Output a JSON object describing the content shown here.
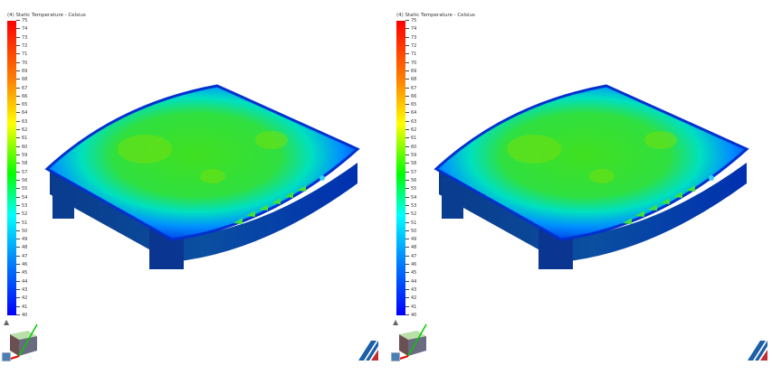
{
  "panels": [
    {
      "legend_title": "(4) Static Temperature - Celsius"
    },
    {
      "legend_title": "(4) Static Temperature - Celsius"
    }
  ],
  "legend": {
    "max": 75,
    "min": 40,
    "ticks": [
      "75",
      "74",
      "73",
      "72",
      "71",
      "70",
      "69",
      "68",
      "67",
      "66",
      "65",
      "64",
      "63",
      "62",
      "61",
      "60",
      "59",
      "58",
      "57",
      "56",
      "55",
      "54",
      "53",
      "52",
      "51",
      "50",
      "49",
      "48",
      "47",
      "46",
      "45",
      "44",
      "43",
      "42",
      "41",
      "40"
    ],
    "colors": [
      "#ff0000",
      "#ff8000",
      "#ffff00",
      "#00ff00",
      "#00ffff",
      "#0080ff",
      "#0000ff"
    ]
  },
  "icons": {
    "home": "home-icon",
    "view_cube": "view-cube-icon",
    "fit": "fit-view-icon",
    "logo": "brand-logo-icon"
  }
}
